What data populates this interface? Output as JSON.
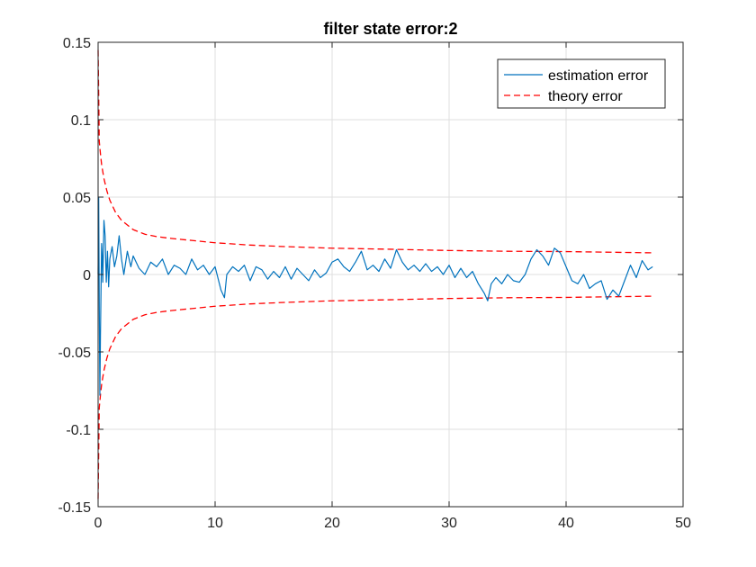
{
  "chart_data": {
    "type": "line",
    "title": "filter state error:2",
    "xlabel": "",
    "ylabel": "",
    "xlim": [
      0,
      50
    ],
    "ylim": [
      -0.15,
      0.15
    ],
    "x_ticks": [
      "0",
      "10",
      "20",
      "30",
      "40",
      "50"
    ],
    "y_ticks": [
      "-0.15",
      "-0.1",
      "-0.05",
      "0",
      "0.05",
      "0.1",
      "0.15"
    ],
    "grid": true,
    "legend_position": "top-right",
    "series": [
      {
        "name": "estimation error",
        "style": "solid",
        "color": "#0072BD",
        "x": [
          0,
          0.05,
          0.1,
          0.15,
          0.2,
          0.25,
          0.3,
          0.35,
          0.4,
          0.5,
          0.6,
          0.7,
          0.8,
          0.9,
          1.0,
          1.2,
          1.4,
          1.6,
          1.8,
          2.0,
          2.2,
          2.5,
          2.8,
          3.0,
          3.5,
          4.0,
          4.5,
          5.0,
          5.5,
          6.0,
          6.5,
          7.0,
          7.5,
          8.0,
          8.5,
          9.0,
          9.5,
          10.0,
          10.5,
          10.8,
          11.0,
          11.5,
          12.0,
          12.5,
          13.0,
          13.5,
          14.0,
          14.5,
          15.0,
          15.5,
          16.0,
          16.5,
          17.0,
          17.5,
          18.0,
          18.5,
          19.0,
          19.5,
          20.0,
          20.5,
          21.0,
          21.5,
          22.0,
          22.5,
          23.0,
          23.5,
          24.0,
          24.5,
          25.0,
          25.5,
          26.0,
          26.5,
          27.0,
          27.5,
          28.0,
          28.5,
          29.0,
          29.5,
          30.0,
          30.5,
          31.0,
          31.5,
          32.0,
          32.5,
          33.0,
          33.3,
          33.6,
          34.0,
          34.5,
          35.0,
          35.5,
          36.0,
          36.5,
          37.0,
          37.5,
          38.0,
          38.5,
          39.0,
          39.5,
          40.0,
          40.5,
          41.0,
          41.5,
          42.0,
          42.5,
          43.0,
          43.5,
          44.0,
          44.5,
          45.0,
          45.5,
          46.0,
          46.5,
          47.0,
          47.4
        ],
        "y": [
          0.0,
          0.05,
          -0.02,
          -0.078,
          -0.04,
          -0.01,
          0.02,
          0.012,
          -0.005,
          0.035,
          0.025,
          -0.005,
          0.015,
          -0.008,
          0.01,
          0.018,
          0.005,
          0.012,
          0.025,
          0.01,
          0.0,
          0.015,
          0.005,
          0.012,
          0.004,
          0.0,
          0.008,
          0.005,
          0.01,
          0.0,
          0.006,
          0.004,
          0.0,
          0.01,
          0.003,
          0.006,
          0.0,
          0.005,
          -0.01,
          -0.015,
          0.0,
          0.005,
          0.002,
          0.006,
          -0.004,
          0.005,
          0.003,
          -0.003,
          0.002,
          -0.002,
          0.005,
          -0.003,
          0.004,
          0.0,
          -0.004,
          0.003,
          -0.002,
          0.001,
          0.008,
          0.01,
          0.005,
          0.002,
          0.008,
          0.015,
          0.003,
          0.006,
          0.002,
          0.01,
          0.004,
          0.016,
          0.008,
          0.003,
          0.006,
          0.002,
          0.007,
          0.002,
          0.005,
          0.0,
          0.006,
          -0.002,
          0.004,
          -0.002,
          0.002,
          -0.006,
          -0.012,
          -0.017,
          -0.006,
          -0.002,
          -0.006,
          0.0,
          -0.004,
          -0.005,
          0.0,
          0.01,
          0.016,
          0.012,
          0.006,
          0.017,
          0.014,
          0.005,
          -0.004,
          -0.006,
          0.0,
          -0.009,
          -0.006,
          -0.004,
          -0.016,
          -0.01,
          -0.014,
          -0.004,
          0.006,
          -0.002,
          0.009,
          0.003,
          0.005
        ]
      },
      {
        "name": "theory error",
        "style": "dashed",
        "color": "#FF0000",
        "x": [
          0,
          0.1,
          0.2,
          0.3,
          0.5,
          0.75,
          1,
          1.5,
          2,
          3,
          4,
          5,
          6,
          8,
          10,
          13,
          16,
          20,
          25,
          30,
          35,
          40,
          47.4
        ],
        "upper": [
          0.145,
          0.086,
          0.078,
          0.071,
          0.062,
          0.054,
          0.048,
          0.04,
          0.035,
          0.029,
          0.026,
          0.0245,
          0.0235,
          0.022,
          0.0205,
          0.019,
          0.018,
          0.017,
          0.0163,
          0.0155,
          0.015,
          0.0148,
          0.014
        ],
        "lower": [
          -0.145,
          -0.086,
          -0.078,
          -0.071,
          -0.062,
          -0.054,
          -0.048,
          -0.04,
          -0.035,
          -0.029,
          -0.026,
          -0.0245,
          -0.0235,
          -0.022,
          -0.0205,
          -0.019,
          -0.018,
          -0.017,
          -0.0163,
          -0.0155,
          -0.015,
          -0.0148,
          -0.014
        ]
      }
    ]
  }
}
